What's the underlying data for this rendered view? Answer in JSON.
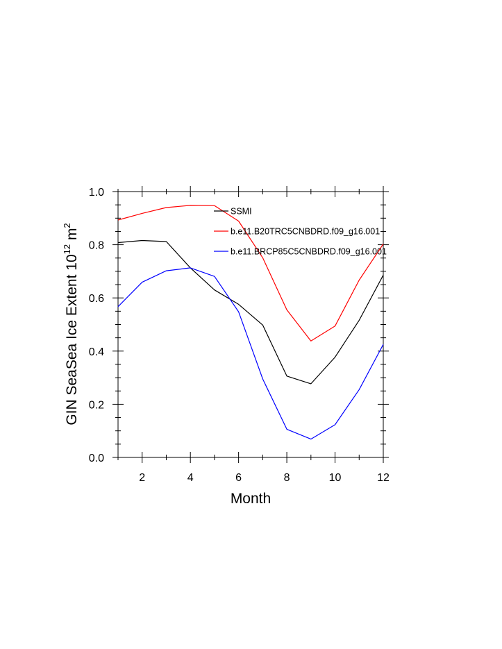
{
  "chart_data": {
    "type": "line",
    "title": "",
    "xlabel": "Month",
    "ylabel_main": "GIN SeaSea Ice Extent 10",
    "ylabel_sup": "12",
    "ylabel_unit": " m",
    "ylabel_unit_sup": "2",
    "xlim": [
      1,
      12
    ],
    "ylim": [
      0.0,
      1.0
    ],
    "x_ticks": [
      2,
      4,
      6,
      8,
      10,
      12
    ],
    "x_tick_labels": [
      "2",
      "4",
      "6",
      "8",
      "10",
      "12"
    ],
    "y_ticks": [
      0.0,
      0.2,
      0.4,
      0.6,
      0.8,
      1.0
    ],
    "y_tick_labels": [
      "0.0",
      "0.2",
      "0.4",
      "0.6",
      "0.8",
      "1.0"
    ],
    "grid": false,
    "legend_position": "top-right",
    "x": [
      1,
      2,
      3,
      4,
      5,
      6,
      7,
      8,
      9,
      10,
      11,
      12
    ],
    "series": [
      {
        "name": "SSMI",
        "color": "#000000",
        "values": [
          0.808,
          0.816,
          0.812,
          0.713,
          0.63,
          0.576,
          0.498,
          0.306,
          0.277,
          0.377,
          0.516,
          0.686
        ]
      },
      {
        "name": "b.e11.B20TRC5CNBDRD.f09_g16.001",
        "color": "#ff0000",
        "values": [
          0.893,
          0.918,
          0.94,
          0.948,
          0.947,
          0.889,
          0.751,
          0.555,
          0.438,
          0.494,
          0.667,
          0.803
        ]
      },
      {
        "name": "b.e11.BRCP85C5CNBDRD.f09_g16.001",
        "color": "#0000ff",
        "values": [
          0.567,
          0.659,
          0.702,
          0.713,
          0.681,
          0.548,
          0.295,
          0.106,
          0.069,
          0.123,
          0.255,
          0.425
        ]
      }
    ]
  }
}
